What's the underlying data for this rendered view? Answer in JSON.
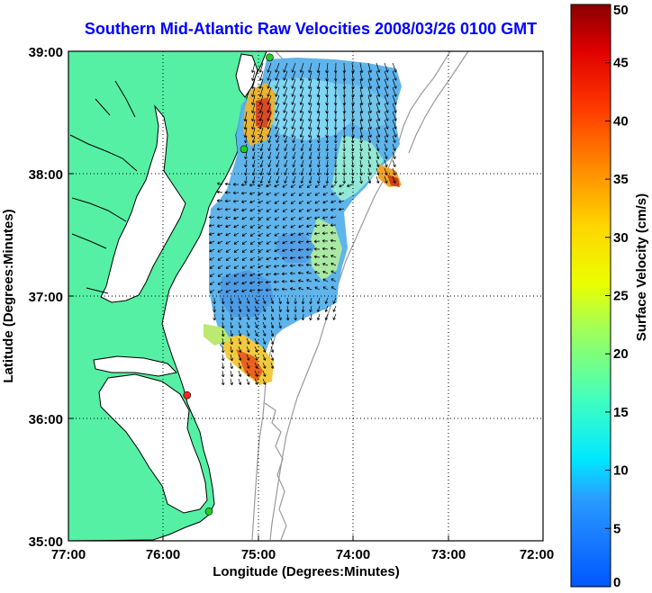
{
  "title": "Southern Mid-Atlantic Raw Velocities 2008/03/26 0100 GMT",
  "map": {
    "xlabel": "Longitude (Degrees:Minutes)",
    "ylabel": "Latitude (Degrees:Minutes)",
    "x_ticks": [
      "77:00",
      "76:00",
      "75:00",
      "74:00",
      "73:00",
      "72:00"
    ],
    "y_ticks": [
      "39:00",
      "38:00",
      "37:00",
      "36:00",
      "35:00"
    ],
    "lon_range": [
      -77,
      -72
    ],
    "lat_range": [
      35,
      39
    ],
    "grid": "dotted",
    "colors": {
      "land": "#55f0a4",
      "water": "#ffffff",
      "coast": "#000000",
      "bathymetry": "#9a9a9a",
      "vectors": "#000000"
    }
  },
  "stations": [
    {
      "lon": -74.88,
      "lat": 38.95,
      "color": "#22cc22"
    },
    {
      "lon": -75.15,
      "lat": 38.2,
      "color": "#22cc22"
    },
    {
      "lon": -75.75,
      "lat": 36.19,
      "color": "#ff2222"
    },
    {
      "lon": -75.52,
      "lat": 35.24,
      "color": "#22cc22"
    }
  ],
  "colorbar": {
    "label": "Surface Velocity (cm/s)",
    "ticks": [
      "0",
      "5",
      "10",
      "15",
      "20",
      "25",
      "30",
      "35",
      "40",
      "45",
      "50"
    ],
    "range": [
      0,
      50
    ],
    "colormap": "jet"
  }
}
